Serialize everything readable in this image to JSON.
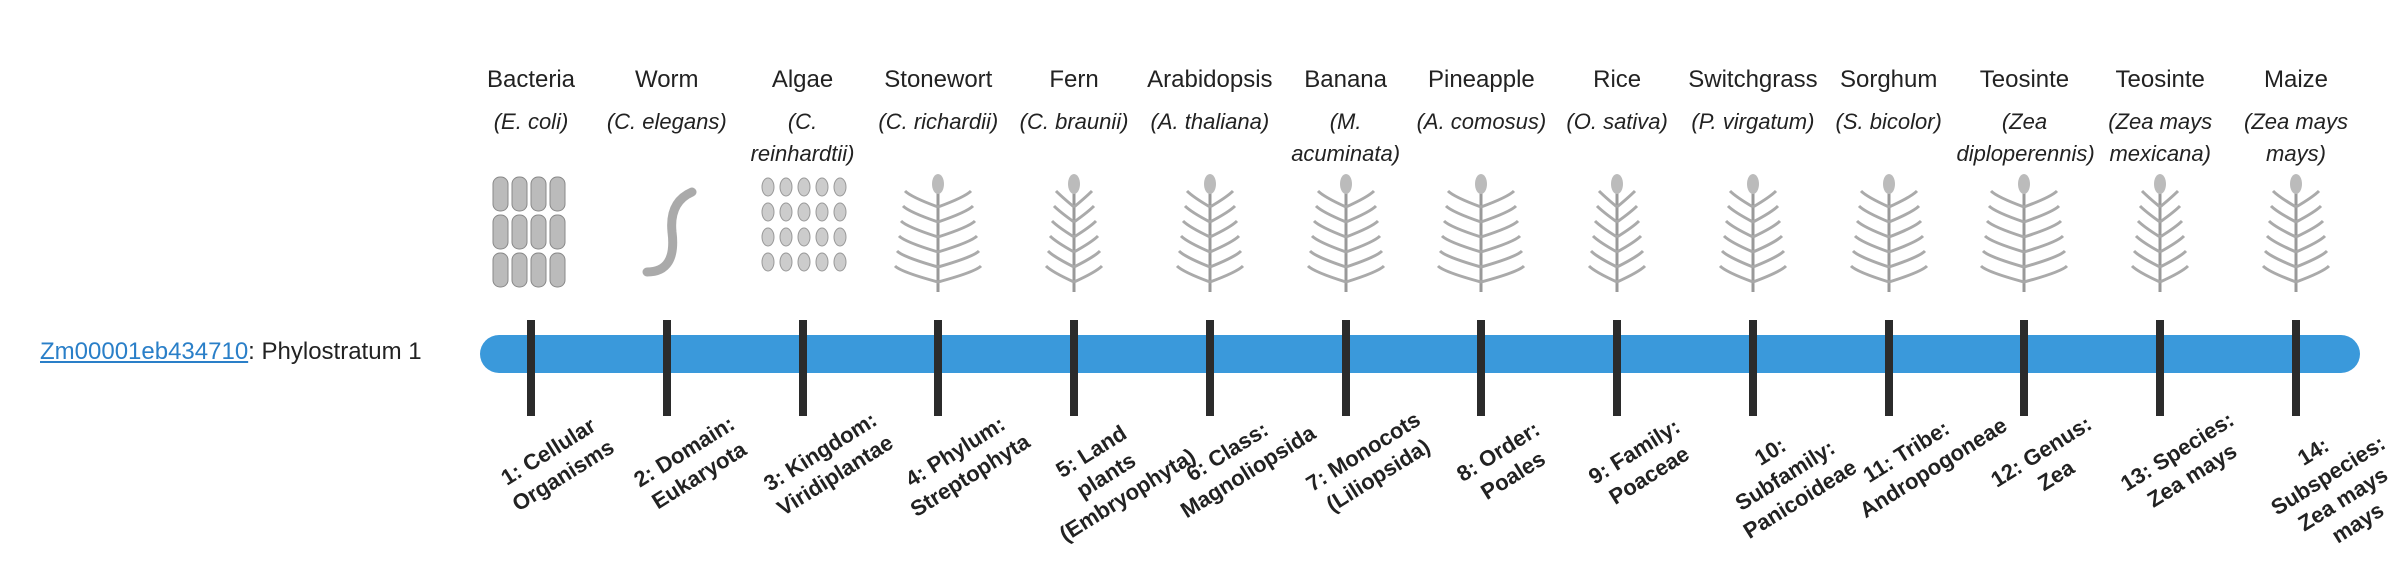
{
  "gene": {
    "id": "Zm00001eb434710",
    "suffix": ": Phylostratum 1"
  },
  "strata": [
    {
      "common": "Bacteria",
      "scientific": "(E. coli)",
      "label": "1: Cellular Organisms"
    },
    {
      "common": "Worm",
      "scientific": "(C. elegans)",
      "label": "2: Domain: Eukaryota"
    },
    {
      "common": "Algae",
      "scientific": "(C. reinhardtii)",
      "label": "3: Kingdom: Viridiplantae"
    },
    {
      "common": "Stonewort",
      "scientific": "(C. richardii)",
      "label": "4: Phylum: Streptophyta"
    },
    {
      "common": "Fern",
      "scientific": "(C. braunii)",
      "label": "5: Land plants (Embryophyta)"
    },
    {
      "common": "Arabidopsis",
      "scientific": "(A. thaliana)",
      "label": "6: Class: Magnoliopsida"
    },
    {
      "common": "Banana",
      "scientific": "(M. acuminata)",
      "label": "7: Monocots (Liliopsida)"
    },
    {
      "common": "Pineapple",
      "scientific": "(A. comosus)",
      "label": "8: Order: Poales"
    },
    {
      "common": "Rice",
      "scientific": "(O. sativa)",
      "label": "9: Family: Poaceae"
    },
    {
      "common": "Switchgrass",
      "scientific": "(P. virgatum)",
      "label": "10: Subfamily: Panicoideae"
    },
    {
      "common": "Sorghum",
      "scientific": "(S. bicolor)",
      "label": "11: Tribe: Andropogoneae"
    },
    {
      "common": "Teosinte",
      "scientific": "(Zea diploperennis)",
      "label": "12: Genus: Zea"
    },
    {
      "common": "Teosinte",
      "scientific": "(Zea mays mexicana)",
      "label": "13: Species: Zea mays"
    },
    {
      "common": "Maize",
      "scientific": "(Zea mays mays)",
      "label": "14: Subspecies: Zea mays mays"
    }
  ]
}
